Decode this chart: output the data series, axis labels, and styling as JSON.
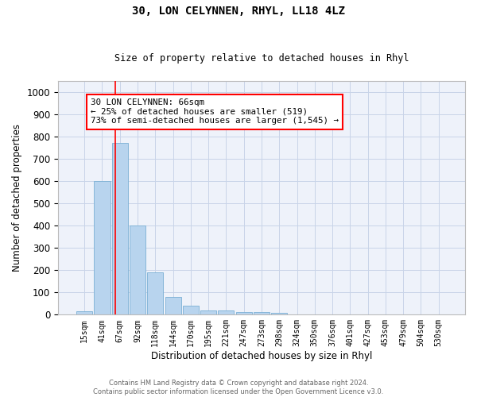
{
  "title": "30, LON CELYNNEN, RHYL, LL18 4LZ",
  "subtitle": "Size of property relative to detached houses in Rhyl",
  "xlabel": "Distribution of detached houses by size in Rhyl",
  "ylabel": "Number of detached properties",
  "footer": "Contains HM Land Registry data © Crown copyright and database right 2024.\nContains public sector information licensed under the Open Government Licence v3.0.",
  "categories": [
    "15sqm",
    "41sqm",
    "67sqm",
    "92sqm",
    "118sqm",
    "144sqm",
    "170sqm",
    "195sqm",
    "221sqm",
    "247sqm",
    "273sqm",
    "298sqm",
    "324sqm",
    "350sqm",
    "376sqm",
    "401sqm",
    "427sqm",
    "453sqm",
    "479sqm",
    "504sqm",
    "530sqm"
  ],
  "values": [
    15,
    600,
    770,
    400,
    190,
    78,
    40,
    18,
    18,
    12,
    12,
    7,
    0,
    0,
    0,
    0,
    0,
    0,
    0,
    0,
    0
  ],
  "bar_color": "#b8d4ee",
  "bar_edge_color": "#7aafd4",
  "grid_color": "#c8d4e8",
  "background_color": "#eef2fa",
  "annotation_line1": "30 LON CELYNNEN: 66sqm",
  "annotation_line2": "← 25% of detached houses are smaller (519)",
  "annotation_line3": "73% of semi-detached houses are larger (1,545) →",
  "vline_x": 1.73,
  "ylim": [
    0,
    1050
  ],
  "yticks": [
    0,
    100,
    200,
    300,
    400,
    500,
    600,
    700,
    800,
    900,
    1000
  ]
}
